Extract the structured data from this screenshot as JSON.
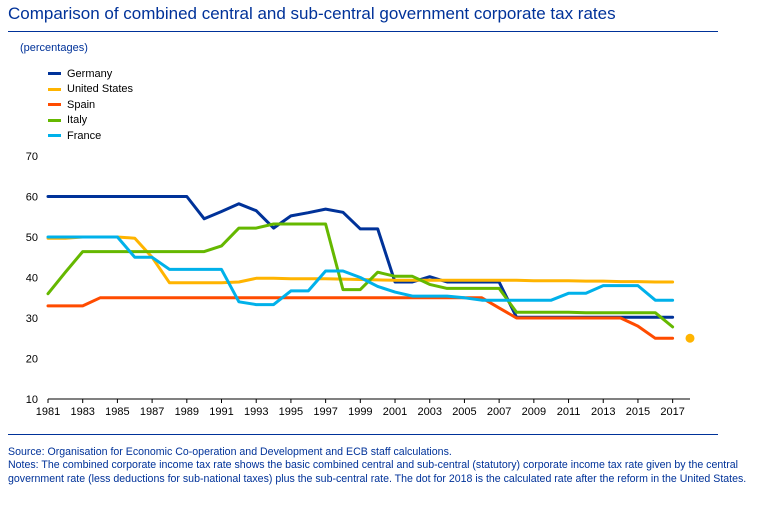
{
  "title": "Comparison of combined central and sub-central government corporate tax rates",
  "source": "Source: Organisation for Economic Co-operation and Development and ECB staff calculations.",
  "notes": "Notes: The combined corporate income tax rate shows the basic combined central and sub-central (statutory) corporate income tax rate given by the central government rate (less deductions for sub-national taxes) plus the sub-central rate. The dot for 2018 is the calculated rate after the reform in the United States.",
  "chart_data": {
    "type": "line",
    "title": "Comparison of combined central and sub-central government corporate tax rates",
    "ylabel": "(percentages)",
    "xlabel": "",
    "xlim": [
      1981,
      2018
    ],
    "ylim": [
      10,
      70
    ],
    "x_ticks": [
      1981,
      1983,
      1985,
      1987,
      1989,
      1991,
      1993,
      1995,
      1997,
      1999,
      2001,
      2003,
      2005,
      2007,
      2009,
      2011,
      2013,
      2015,
      2017
    ],
    "y_ticks": [
      10,
      20,
      30,
      40,
      50,
      60,
      70
    ],
    "grid": false,
    "legend_position": "top-left",
    "x": [
      1981,
      1982,
      1983,
      1984,
      1985,
      1986,
      1987,
      1988,
      1989,
      1990,
      1991,
      1992,
      1993,
      1994,
      1995,
      1996,
      1997,
      1998,
      1999,
      2000,
      2001,
      2002,
      2003,
      2004,
      2005,
      2006,
      2007,
      2008,
      2009,
      2010,
      2011,
      2012,
      2013,
      2014,
      2015,
      2016,
      2017
    ],
    "series": [
      {
        "name": "Germany",
        "color": "#003299",
        "values": [
          60,
          60,
          60,
          60,
          60,
          60,
          60,
          60,
          60,
          54.5,
          56.3,
          58.2,
          56.5,
          52.2,
          55.2,
          56,
          56.9,
          56.1,
          52,
          52,
          38.9,
          38.9,
          40.2,
          38.9,
          38.9,
          38.9,
          38.9,
          30.2,
          30.2,
          30.2,
          30.2,
          30.2,
          30.2,
          30.2,
          30.2,
          30.2,
          30.2
        ]
      },
      {
        "name": "United States",
        "color": "#FFB400",
        "values": [
          49.7,
          49.7,
          50,
          50,
          50,
          49.7,
          45,
          38.7,
          38.7,
          38.7,
          38.7,
          38.9,
          39.8,
          39.8,
          39.7,
          39.7,
          39.7,
          39.6,
          39.5,
          39.4,
          39.3,
          39.3,
          39.3,
          39.3,
          39.3,
          39.3,
          39.3,
          39.3,
          39.2,
          39.2,
          39.2,
          39.1,
          39.1,
          39,
          39,
          38.9,
          38.9
        ]
      },
      {
        "name": "Spain",
        "color": "#FF4B00",
        "values": [
          33,
          33,
          33,
          35,
          35,
          35,
          35,
          35,
          35,
          35,
          35,
          35,
          35,
          35,
          35,
          35,
          35,
          35,
          35,
          35,
          35,
          35,
          35,
          35,
          35,
          35,
          32.5,
          30,
          30,
          30,
          30,
          30,
          30,
          30,
          28,
          25,
          25
        ]
      },
      {
        "name": "Italy",
        "color": "#65B800",
        "values": [
          36,
          41.3,
          46.4,
          46.4,
          46.4,
          46.4,
          46.4,
          46.4,
          46.4,
          46.4,
          47.8,
          52.2,
          52.2,
          53.2,
          53.2,
          53.2,
          53.2,
          37,
          37,
          41.3,
          40.3,
          40.3,
          38.3,
          37.3,
          37.3,
          37.3,
          37.3,
          31.4,
          31.4,
          31.4,
          31.4,
          31.3,
          31.3,
          31.3,
          31.3,
          31.3,
          27.8
        ]
      },
      {
        "name": "France",
        "color": "#00B1EA",
        "values": [
          50,
          50,
          50,
          50,
          50,
          45,
          45,
          42,
          42,
          42,
          42,
          34,
          33.3,
          33.3,
          36.7,
          36.7,
          41.6,
          41.6,
          40,
          37.8,
          36.4,
          35.4,
          35.4,
          35.4,
          35,
          34.4,
          34.4,
          34.4,
          34.4,
          34.4,
          36.1,
          36.1,
          38,
          38,
          38,
          34.4,
          34.4
        ]
      }
    ],
    "annotations": [
      {
        "series": "United States",
        "x": 2018,
        "y": 25,
        "marker": "dot",
        "color": "#FFB400"
      }
    ]
  }
}
